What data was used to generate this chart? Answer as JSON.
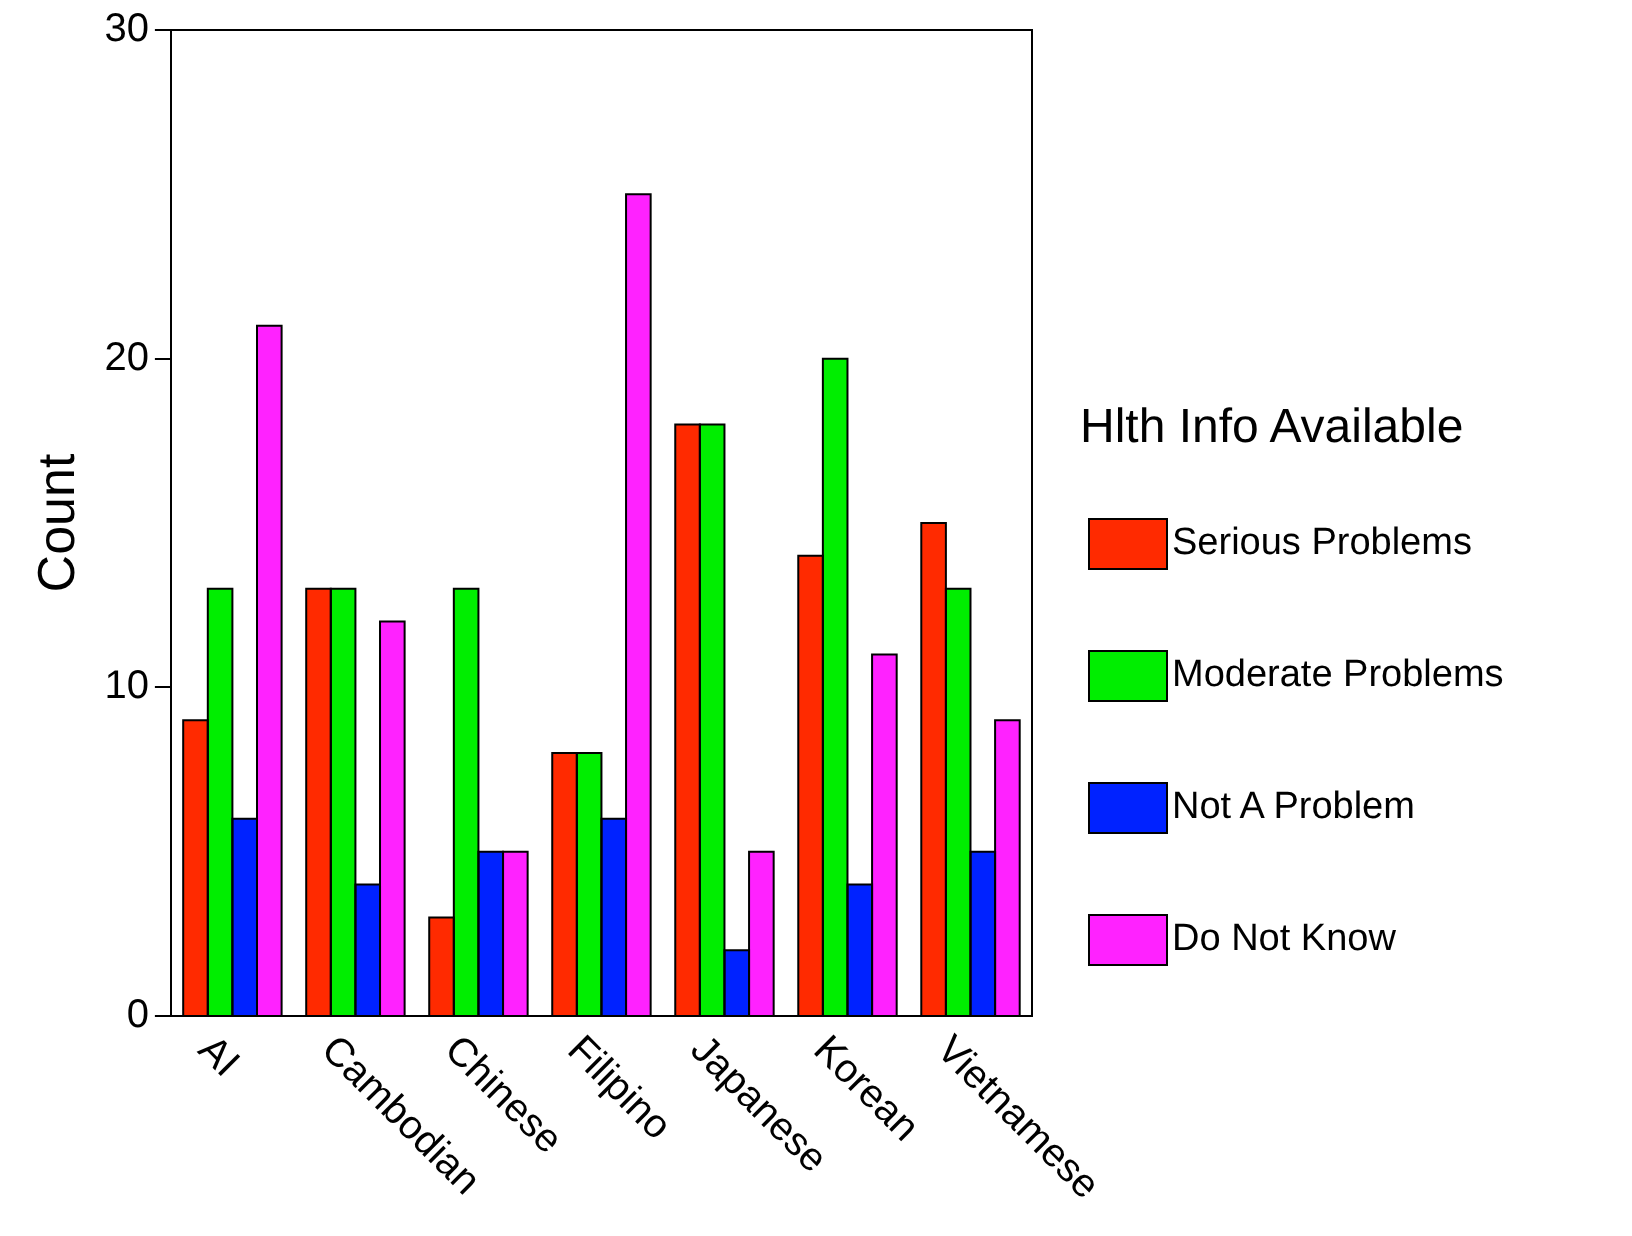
{
  "chart_data": {
    "type": "bar",
    "ylabel": "Count",
    "legend_title": "Hlth Info Available",
    "legend": "right",
    "grid": false,
    "categories": [
      "AI",
      "Cambodian",
      "Chinese",
      "Filipino",
      "Japanese",
      "Korean",
      "Vietnamese"
    ],
    "ylim": [
      0,
      30
    ],
    "yticks": [
      0,
      10,
      20,
      30
    ],
    "series": [
      {
        "name": "Serious Problems",
        "color": "#ff2a00",
        "values": [
          9,
          13,
          3,
          8,
          18,
          14,
          15
        ]
      },
      {
        "name": "Moderate Problems",
        "color": "#00ee00",
        "values": [
          13,
          13,
          13,
          8,
          18,
          20,
          13
        ]
      },
      {
        "name": "Not A Problem",
        "color": "#0022ff",
        "values": [
          6,
          4,
          5,
          6,
          2,
          4,
          5
        ]
      },
      {
        "name": "Do Not Know",
        "color": "#ff22ff",
        "values": [
          21,
          12,
          5,
          25,
          5,
          11,
          9
        ]
      }
    ]
  }
}
